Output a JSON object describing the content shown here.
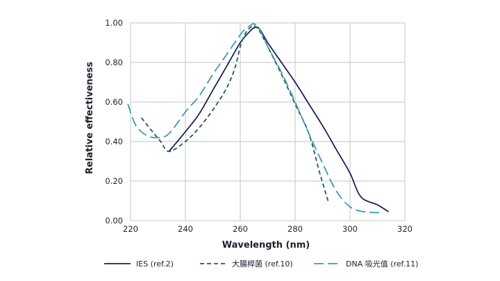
{
  "chart_data": {
    "type": "line",
    "title": "",
    "xlabel": "Wavelength (nm)",
    "ylabel": "Relative effectiveness",
    "xlim": [
      220,
      320
    ],
    "ylim": [
      0,
      1
    ],
    "x_ticks": [
      "220",
      "240",
      "260",
      "280",
      "300",
      "320"
    ],
    "y_ticks": [
      "0.00",
      "0.20",
      "0.40",
      "0.60",
      "0.80",
      "1.00"
    ],
    "grid": true,
    "legend_position": "bottom",
    "series": [
      {
        "name": "IES (ref.2)",
        "color": "#1f1d5c",
        "style": "solid",
        "points": [
          [
            234,
            0.35
          ],
          [
            240,
            0.45
          ],
          [
            245,
            0.54
          ],
          [
            250,
            0.66
          ],
          [
            255,
            0.78
          ],
          [
            260,
            0.9
          ],
          [
            263,
            0.95
          ],
          [
            265,
            0.975
          ],
          [
            267,
            0.97
          ],
          [
            270,
            0.9
          ],
          [
            275,
            0.8
          ],
          [
            280,
            0.7
          ],
          [
            285,
            0.59
          ],
          [
            290,
            0.48
          ],
          [
            295,
            0.36
          ],
          [
            300,
            0.24
          ],
          [
            304,
            0.12
          ],
          [
            310,
            0.08
          ],
          [
            314,
            0.045
          ]
        ]
      },
      {
        "name": "大腸桿菌 (ref.10)",
        "color": "#1e5c4a",
        "style": "dashed",
        "points": [
          [
            224,
            0.52
          ],
          [
            228,
            0.45
          ],
          [
            231,
            0.4
          ],
          [
            234,
            0.35
          ],
          [
            240,
            0.4
          ],
          [
            245,
            0.47
          ],
          [
            250,
            0.56
          ],
          [
            255,
            0.67
          ],
          [
            258,
            0.77
          ],
          [
            260,
            0.88
          ],
          [
            262,
            0.95
          ],
          [
            264,
            0.98
          ],
          [
            265,
            0.985
          ],
          [
            267,
            0.96
          ],
          [
            270,
            0.88
          ],
          [
            275,
            0.74
          ],
          [
            280,
            0.59
          ],
          [
            285,
            0.44
          ],
          [
            289,
            0.24
          ],
          [
            292,
            0.1
          ]
        ]
      },
      {
        "name": "DNA 吸光值 (ref.11)",
        "color": "#3a9ab0",
        "style": "longdash",
        "points": [
          [
            219,
            0.59
          ],
          [
            222,
            0.48
          ],
          [
            226,
            0.43
          ],
          [
            230,
            0.42
          ],
          [
            234,
            0.44
          ],
          [
            240,
            0.55
          ],
          [
            245,
            0.63
          ],
          [
            250,
            0.74
          ],
          [
            255,
            0.84
          ],
          [
            260,
            0.94
          ],
          [
            262,
            0.97
          ],
          [
            264,
            0.99
          ],
          [
            265,
            0.995
          ],
          [
            267,
            0.97
          ],
          [
            270,
            0.88
          ],
          [
            275,
            0.75
          ],
          [
            280,
            0.6
          ],
          [
            285,
            0.44
          ],
          [
            290,
            0.29
          ],
          [
            295,
            0.15
          ],
          [
            300,
            0.07
          ],
          [
            305,
            0.045
          ],
          [
            312,
            0.04
          ]
        ]
      }
    ]
  }
}
